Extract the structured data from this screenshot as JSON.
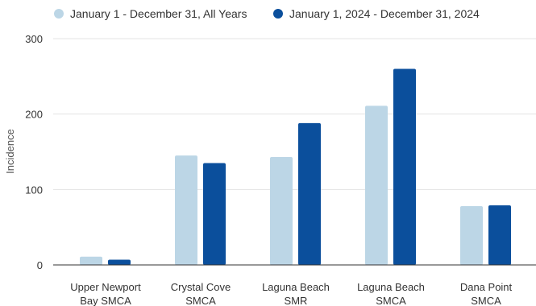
{
  "chart_data": {
    "type": "bar",
    "categories": [
      [
        "Upper Newport",
        "Bay SMCA"
      ],
      [
        "Crystal Cove",
        "SMCA"
      ],
      [
        "Laguna Beach",
        "SMR"
      ],
      [
        "Laguna Beach",
        "SMCA"
      ],
      [
        "Dana Point",
        "SMCA"
      ]
    ],
    "series": [
      {
        "name": "January 1 - December 31, All Years",
        "color": "#bcd6e6",
        "values": [
          11,
          145,
          143,
          211,
          78
        ]
      },
      {
        "name": "January 1, 2024 - December 31, 2024",
        "color": "#0b4f9c",
        "values": [
          7,
          135,
          188,
          260,
          79
        ]
      }
    ],
    "ylabel": "Incidence",
    "ylim": [
      0,
      300
    ],
    "yticks": [
      0,
      100,
      200,
      300
    ],
    "grid": true,
    "legend": "top-left"
  }
}
